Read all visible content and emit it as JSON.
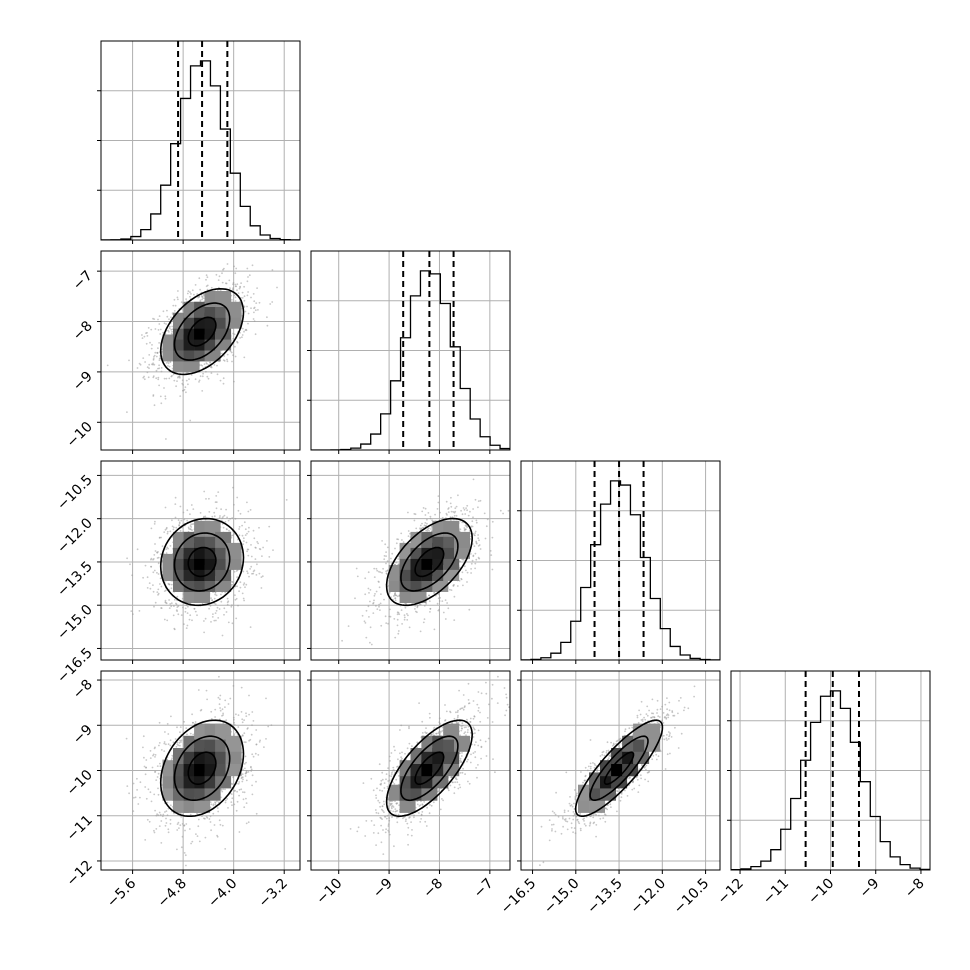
{
  "chart_data": {
    "type": "corner",
    "title": "",
    "parameters": [
      {
        "range": [
          -6.1,
          -2.95
        ],
        "ticks": [
          -5.6,
          -4.8,
          -4.0,
          -3.2
        ],
        "tick_labels": [
          "−5.6",
          "−4.8",
          "−4.0",
          "−3.2"
        ],
        "median": -4.5,
        "q16": -4.88,
        "q84": -4.1,
        "sigma": 0.37
      },
      {
        "range": [
          -10.55,
          -6.6
        ],
        "ticks": [
          -10,
          -9,
          -8,
          -7
        ],
        "tick_labels": [
          "−10",
          "−9",
          "−8",
          "−7"
        ],
        "median": -8.2,
        "q16": -8.72,
        "q84": -7.72,
        "sigma": 0.48
      },
      {
        "range": [
          -16.9,
          -10.0
        ],
        "ticks": [
          -16.5,
          -15.0,
          -13.5,
          -12.0,
          -10.5
        ],
        "tick_labels": [
          "−16.5",
          "−15.0",
          "−13.5",
          "−12.0",
          "−10.5"
        ],
        "median": -13.5,
        "q16": -14.35,
        "q84": -12.65,
        "sigma": 0.85
      },
      {
        "range": [
          -12.2,
          -7.8
        ],
        "ticks": [
          -12,
          -11,
          -10,
          -9,
          -8
        ],
        "tick_labels": [
          "−12",
          "−11",
          "−10",
          "−9",
          "−8"
        ],
        "median": -9.95,
        "q16": -10.55,
        "q84": -9.37,
        "sigma": 0.6
      }
    ],
    "correlations": [
      [
        1,
        0.45,
        0.1,
        0.3
      ],
      [
        0.45,
        1,
        0.55,
        0.7
      ],
      [
        0.1,
        0.55,
        1,
        0.85
      ],
      [
        0.3,
        0.7,
        0.85,
        1
      ]
    ],
    "quantiles": [
      0.16,
      0.5,
      0.84
    ],
    "grid": true,
    "histogram_style": "step",
    "contour_levels": 3,
    "colors": {
      "line": "#000000",
      "points": "#9a9a9a",
      "grid": "#b0b0b0"
    }
  }
}
